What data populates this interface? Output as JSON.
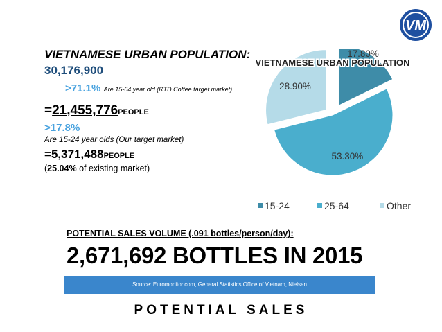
{
  "left": {
    "title": "VIETNAMESE URBAN POPULATION:",
    "population": "30,176,900",
    "pct_71": ">71.1%",
    "note_71": "Are 15-64 year old (RTD Coffee target market)",
    "eq1_sign": "=",
    "eq1_value": "21,455,776",
    "unit": "PEOPLE",
    "pct_17": ">17.8%",
    "note_17": "Are 15-24 year olds (Our target market)",
    "eq2_sign": "=",
    "eq2_value": "5,371,488",
    "share_pct": "25.04%",
    "share_text": "of existing market)"
  },
  "sales": {
    "label": "POTENTIAL SALES VOLUME (.091 bottles/person/day)",
    "colon": ":",
    "headline": "2,671,692 BOTTLES IN 2015"
  },
  "source": "Source: Euromonitor.com, General Statistics Office of Vietnam, Nielsen",
  "footer": "POTENTIAL SALES",
  "logo": {
    "text": "VM",
    "icon": "brand-logo-icon",
    "color": "#1e4fa0"
  },
  "chart_data": {
    "type": "pie",
    "title": "VIETNAMESE URBAN POPULATION",
    "slices": [
      {
        "name": "15-24",
        "value": 17.8,
        "label": "17.80%",
        "color": "#3e8ca8"
      },
      {
        "name": "25-64",
        "value": 53.3,
        "label": "53.30%",
        "color": "#4aaecd"
      },
      {
        "name": "Other",
        "value": 28.9,
        "label": "28.90%",
        "color": "#b5dbe8"
      }
    ],
    "legend": "bottom",
    "start_angle_deg": 0,
    "direction": "clockwise",
    "exploded": true
  }
}
